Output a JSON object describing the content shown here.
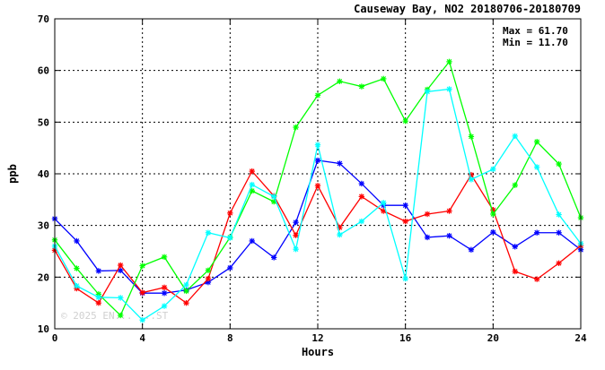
{
  "chart_data": {
    "type": "line",
    "title": "Causeway Bay, NO2 20180706-20180709",
    "xlabel": "Hours",
    "ylabel": "ppb",
    "xlim": [
      0,
      24
    ],
    "ylim": [
      10,
      70
    ],
    "x_ticks": [
      0,
      4,
      8,
      12,
      16,
      20,
      24
    ],
    "y_ticks": [
      10,
      20,
      30,
      40,
      50,
      60,
      70
    ],
    "grid": true,
    "stats": {
      "max_label": "Max = 61.70",
      "min_label": "Min = 11.70"
    },
    "watermark": "© 2025 EN... ...ST",
    "series": [
      {
        "color": "#0000ff",
        "values": [
          31.3,
          27.0,
          21.2,
          21.3,
          16.9,
          16.9,
          17.5,
          19.0,
          21.8,
          27.0,
          23.8,
          30.6,
          42.6,
          42.0,
          38.1,
          33.9,
          33.9,
          27.7,
          28.0,
          25.3,
          28.7,
          25.9,
          28.6,
          28.6,
          25.3
        ]
      },
      {
        "color": "#ff0000",
        "values": [
          25.2,
          17.8,
          15.0,
          22.3,
          17.0,
          18.0,
          15.0,
          19.7,
          32.4,
          40.5,
          35.7,
          28.1,
          37.7,
          29.6,
          35.6,
          32.8,
          30.8,
          32.2,
          32.8,
          39.8,
          33.0,
          21.1,
          19.6,
          22.7,
          26.1
        ]
      },
      {
        "color": "#00ff00",
        "values": [
          27.2,
          21.7,
          16.7,
          12.6,
          22.2,
          23.9,
          17.3,
          21.3,
          27.7,
          36.7,
          34.6,
          49.0,
          55.2,
          57.9,
          56.9,
          58.4,
          50.2,
          56.3,
          61.7,
          47.2,
          32.2,
          37.8,
          46.2,
          41.9,
          31.5
        ]
      },
      {
        "color": "#00ffff",
        "values": [
          26.0,
          18.3,
          16.1,
          16.0,
          11.7,
          14.4,
          18.5,
          28.6,
          27.6,
          37.9,
          35.6,
          25.4,
          45.6,
          28.2,
          30.8,
          34.4,
          19.7,
          55.9,
          56.4,
          38.9,
          40.9,
          47.3,
          41.3,
          32.1,
          26.5
        ]
      }
    ]
  }
}
